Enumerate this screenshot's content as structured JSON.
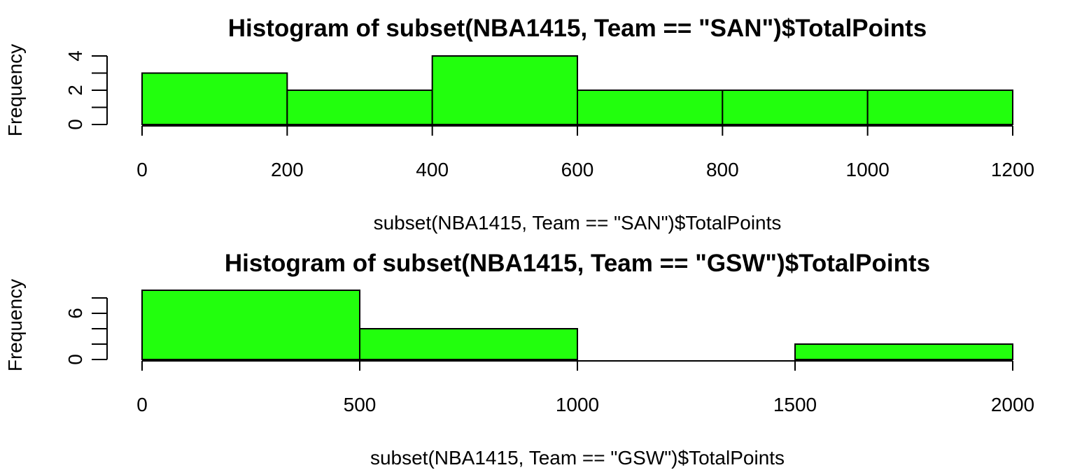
{
  "chart_data": [
    {
      "type": "bar",
      "title": "Histogram of subset(NBA1415, Team == \"SAN\")$TotalPoints",
      "xlabel": "subset(NBA1415, Team == \"SAN\")$TotalPoints",
      "ylabel": "Frequency",
      "bar_color": "#22ff0d",
      "bin_edges": [
        0,
        200,
        400,
        600,
        800,
        1000,
        1200
      ],
      "values": [
        3,
        2,
        4,
        2,
        2,
        2
      ],
      "xlim": [
        0,
        1200
      ],
      "x_ticks": [
        0,
        200,
        400,
        600,
        800,
        1000,
        1200
      ],
      "x_tick_labels": [
        "0",
        "200",
        "400",
        "600",
        "800",
        "1000",
        "1200"
      ],
      "ylim": [
        0,
        4
      ],
      "y_ticks": [
        0,
        1,
        2,
        3,
        4
      ],
      "y_tick_labels": [
        "0",
        "",
        "2",
        "",
        "4"
      ],
      "grid": false
    },
    {
      "type": "bar",
      "title": "Histogram of subset(NBA1415, Team == \"GSW\")$TotalPoints",
      "xlabel": "subset(NBA1415, Team == \"GSW\")$TotalPoints",
      "ylabel": "Frequency",
      "bar_color": "#22ff0d",
      "bin_edges": [
        0,
        500,
        1000,
        1500,
        2000
      ],
      "values": [
        9,
        4,
        0,
        2
      ],
      "xlim": [
        0,
        2000
      ],
      "x_ticks": [
        0,
        500,
        1000,
        1500,
        2000
      ],
      "x_tick_labels": [
        "0",
        "500",
        "1000",
        "1500",
        "2000"
      ],
      "ylim": [
        0,
        8
      ],
      "y_ticks": [
        0,
        2,
        4,
        6,
        8
      ],
      "y_tick_labels": [
        "0",
        "",
        "",
        "6",
        ""
      ],
      "grid": false
    }
  ]
}
